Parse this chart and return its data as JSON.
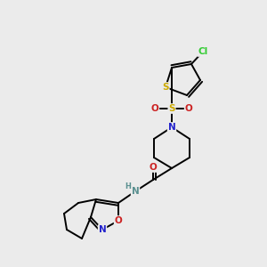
{
  "background_color": "#ebebeb",
  "atom_colors": {
    "C": "#000000",
    "H": "#5a9090",
    "N": "#2222cc",
    "O": "#cc2222",
    "S": "#ccaa00",
    "Cl": "#33cc33"
  },
  "bond_color": "#000000",
  "bond_width": 1.4,
  "figsize": [
    3.0,
    3.0
  ],
  "dpi": 100
}
